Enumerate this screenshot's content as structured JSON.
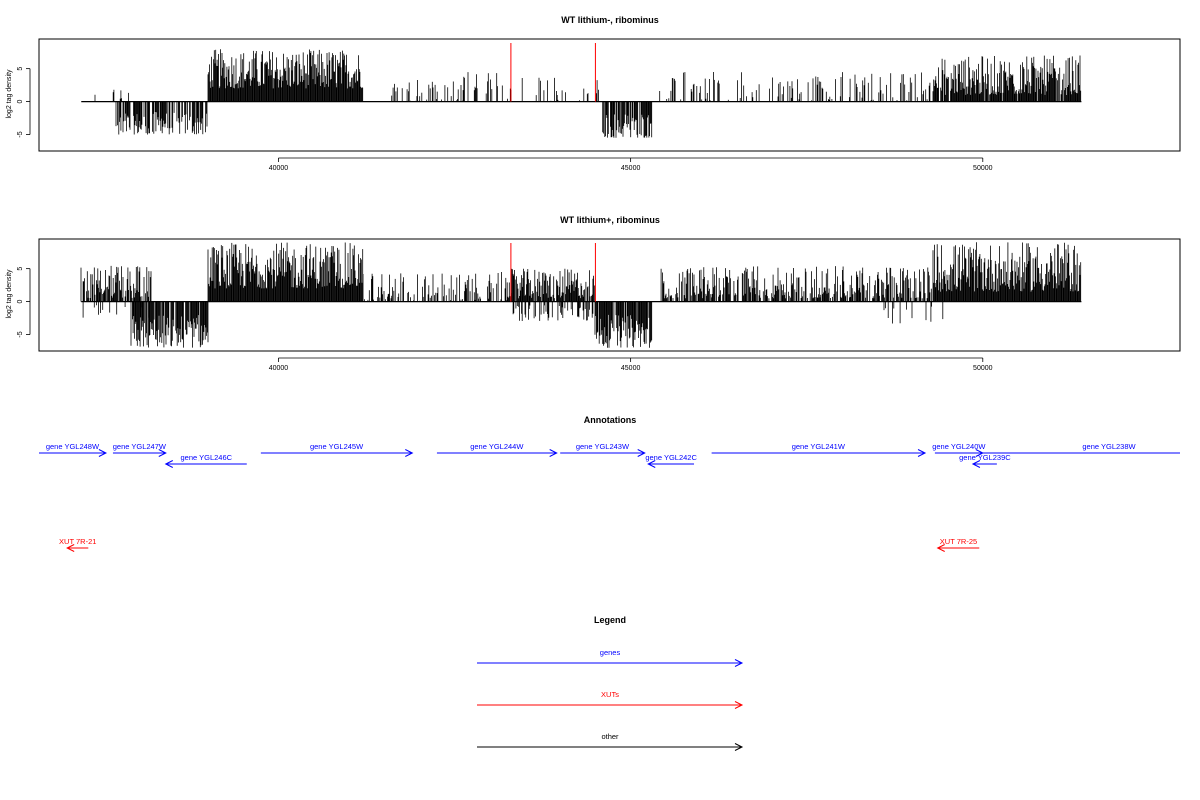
{
  "chart_data": [
    {
      "type": "bar",
      "title": "WT lithium-, ribominus",
      "ylabel": "log2 tag density",
      "xlim": [
        36600,
        52800
      ],
      "ylim": [
        -7.5,
        9.5
      ],
      "xticks": [
        40000,
        45000,
        50000
      ],
      "yticks": [
        -5,
        0,
        5
      ],
      "markers": [
        43300,
        44500
      ],
      "marker_color": "#ff0000",
      "bar_color": "#000000",
      "segments": [
        {
          "x": [
            37200,
            37900
          ],
          "lo": 0,
          "hi": 3,
          "density": 0.15
        },
        {
          "x": [
            37700,
            39000
          ],
          "lo": -5,
          "hi": -1.5,
          "density": 0.7
        },
        {
          "x": [
            39000,
            41200
          ],
          "lo": 2,
          "hi": 8,
          "density": 1.0
        },
        {
          "x": [
            41600,
            43200
          ],
          "lo": 0,
          "hi": 4.5,
          "density": 0.3
        },
        {
          "x": [
            43200,
            44600
          ],
          "lo": 0,
          "hi": 4,
          "density": 0.2
        },
        {
          "x": [
            44600,
            45300
          ],
          "lo": -5.5,
          "hi": -1.5,
          "density": 0.8
        },
        {
          "x": [
            45400,
            49300
          ],
          "lo": 0,
          "hi": 4.5,
          "density": 0.3
        },
        {
          "x": [
            49300,
            51400
          ],
          "lo": 1,
          "hi": 7,
          "density": 0.9
        }
      ]
    },
    {
      "type": "bar",
      "title": "WT lithium+, ribominus",
      "ylabel": "log2 tag density",
      "xlim": [
        36600,
        52800
      ],
      "ylim": [
        -7.5,
        9.5
      ],
      "xticks": [
        40000,
        45000,
        50000
      ],
      "yticks": [
        -5,
        0,
        5
      ],
      "markers": [
        43300,
        44500
      ],
      "marker_color": "#ff0000",
      "bar_color": "#000000",
      "segments": [
        {
          "x": [
            37200,
            38200
          ],
          "lo": 0.5,
          "hi": 5.5,
          "density": 0.8
        },
        {
          "x": [
            37200,
            38200
          ],
          "lo": -2.5,
          "hi": -0.5,
          "density": 0.2
        },
        {
          "x": [
            37900,
            39000
          ],
          "lo": -7,
          "hi": -2,
          "density": 0.9
        },
        {
          "x": [
            39000,
            41200
          ],
          "lo": 2,
          "hi": 9,
          "density": 1.0
        },
        {
          "x": [
            41200,
            43300
          ],
          "lo": 0,
          "hi": 4.5,
          "density": 0.5
        },
        {
          "x": [
            43300,
            44500
          ],
          "lo": 0.5,
          "hi": 5,
          "density": 0.9
        },
        {
          "x": [
            43300,
            44500
          ],
          "lo": -3,
          "hi": -0.5,
          "density": 0.3
        },
        {
          "x": [
            44500,
            45300
          ],
          "lo": -7,
          "hi": -2,
          "density": 0.9
        },
        {
          "x": [
            45400,
            49300
          ],
          "lo": 0.5,
          "hi": 5.5,
          "density": 0.7
        },
        {
          "x": [
            48600,
            49500
          ],
          "lo": -3.5,
          "hi": -0.5,
          "density": 0.1
        },
        {
          "x": [
            49300,
            51400
          ],
          "lo": 1.5,
          "hi": 9,
          "density": 1.0
        }
      ]
    }
  ],
  "annotations": {
    "title": "Annotations",
    "genes": [
      {
        "label": "gene YGL248W",
        "start": 36600,
        "end": 37550,
        "dir": "right",
        "row": 0
      },
      {
        "label": "gene YGL247W",
        "start": 37650,
        "end": 38400,
        "dir": "right",
        "row": 0
      },
      {
        "label": "gene YGL246C",
        "start": 38400,
        "end": 39550,
        "dir": "left",
        "row": 1
      },
      {
        "label": "gene YGL245W",
        "start": 39750,
        "end": 41900,
        "dir": "right",
        "row": 0
      },
      {
        "label": "gene YGL244W",
        "start": 42250,
        "end": 43950,
        "dir": "right",
        "row": 0
      },
      {
        "label": "gene YGL243W",
        "start": 44000,
        "end": 45200,
        "dir": "right",
        "row": 0
      },
      {
        "label": "gene YGL242C",
        "start": 45250,
        "end": 45900,
        "dir": "left",
        "row": 1
      },
      {
        "label": "gene YGL241W",
        "start": 46150,
        "end": 49180,
        "dir": "right",
        "row": 0
      },
      {
        "label": "gene YGL240W",
        "start": 49320,
        "end": 50000,
        "dir": "right",
        "row": 0
      },
      {
        "label": "gene YGL239C",
        "start": 49860,
        "end": 50200,
        "dir": "left",
        "row": 1
      },
      {
        "label": "gene YGL238W",
        "start": 49800,
        "end": 52800,
        "dir": "right",
        "row": 0,
        "clip": true
      }
    ],
    "xuts": [
      {
        "label": "XUT 7R-21",
        "start": 37000,
        "end": 37300,
        "dir": "left"
      },
      {
        "label": "XUT 7R-25",
        "start": 49360,
        "end": 49950,
        "dir": "left"
      }
    ]
  },
  "legend": {
    "title": "Legend",
    "items": [
      {
        "label": "genes",
        "color": "#0000ff"
      },
      {
        "label": "XUTs",
        "color": "#ff0000"
      },
      {
        "label": "other",
        "color": "#000000"
      }
    ]
  },
  "colors": {
    "gene": "#0000ff",
    "xut": "#ff0000",
    "other": "#000000",
    "frame": "#000000"
  }
}
